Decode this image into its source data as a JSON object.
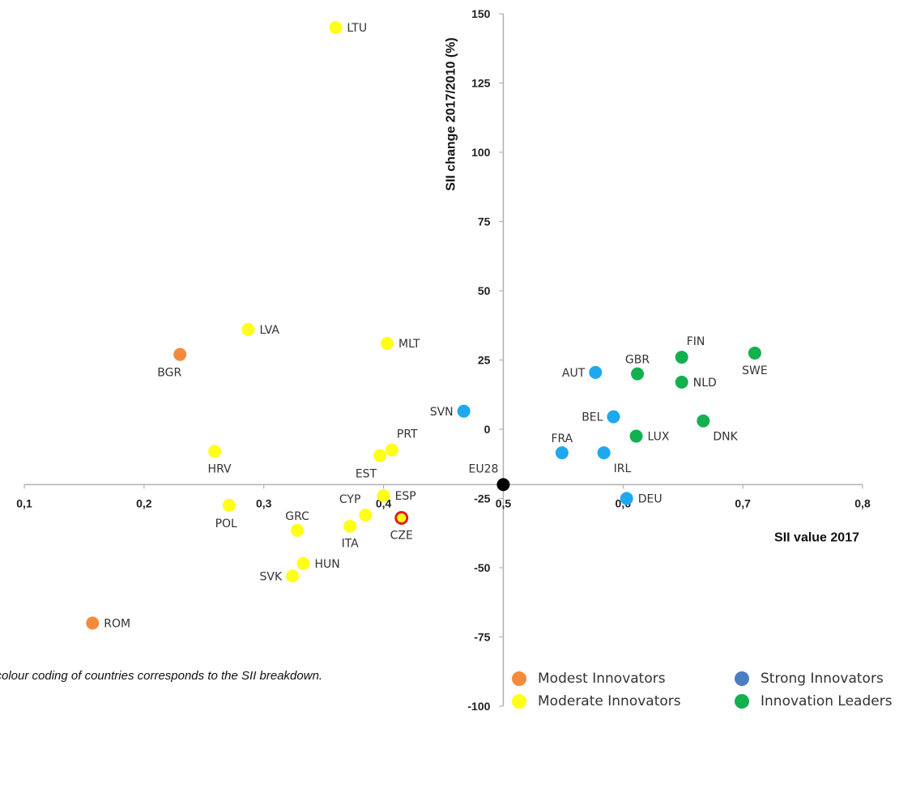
{
  "chart_data": {
    "type": "scatter",
    "xlabel": "SII value 2017",
    "ylabel": "SII change 2017/2010 (%)",
    "xlim": [
      0.1,
      0.8
    ],
    "ylim": [
      -100,
      150
    ],
    "x_ticks": [
      "0,1",
      "0,2",
      "0,3",
      "0,4",
      "0,5",
      "0,6",
      "0,7",
      "0,8"
    ],
    "y_ticks": [
      "150",
      "125",
      "100",
      "75",
      "50",
      "25",
      "0",
      "-25",
      "-50",
      "-75",
      "-100"
    ],
    "grid": false,
    "legend_position": "bottom-right",
    "categories": [
      {
        "key": "modest",
        "name": "Modest Innovators",
        "color": "#f28c3c"
      },
      {
        "key": "moderate",
        "name": "Moderate Innovators",
        "color": "#ffff1a"
      },
      {
        "key": "strong",
        "name": "Strong Innovators",
        "color": "#4a7ec2"
      },
      {
        "key": "leaders",
        "name": "Innovation Leaders",
        "color": "#13b050"
      }
    ],
    "points": [
      {
        "label": "LTU",
        "x": 0.36,
        "y": 145,
        "cat": "moderate",
        "color": "#ffff1a",
        "lpos": "right"
      },
      {
        "label": "LVA",
        "x": 0.287,
        "y": 36,
        "cat": "moderate",
        "color": "#ffff1a",
        "lpos": "right"
      },
      {
        "label": "MLT",
        "x": 0.403,
        "y": 31,
        "cat": "moderate",
        "color": "#ffff1a",
        "lpos": "right"
      },
      {
        "label": "BGR",
        "x": 0.23,
        "y": 27,
        "cat": "modest",
        "color": "#f28c3c",
        "lpos": "below-left"
      },
      {
        "label": "HRV",
        "x": 0.259,
        "y": -8,
        "cat": "moderate",
        "color": "#ffff1a",
        "lpos": "below"
      },
      {
        "label": "PRT",
        "x": 0.407,
        "y": -7.5,
        "cat": "moderate",
        "color": "#ffff1a",
        "lpos": "above-right"
      },
      {
        "label": "EST",
        "x": 0.397,
        "y": -9.5,
        "cat": "moderate",
        "color": "#ffff1a",
        "lpos": "below-left"
      },
      {
        "label": "POL",
        "x": 0.271,
        "y": -27.5,
        "cat": "moderate",
        "color": "#ffff1a",
        "lpos": "below-left"
      },
      {
        "label": "ESP",
        "x": 0.4,
        "y": -24,
        "cat": "moderate",
        "color": "#ffff1a",
        "lpos": "right"
      },
      {
        "label": "CYP",
        "x": 0.385,
        "y": -31,
        "cat": "moderate",
        "color": "#ffff1a",
        "lpos": "above-left"
      },
      {
        "label": "CZE",
        "x": 0.415,
        "y": -32,
        "cat": "moderate",
        "color": "#ffff1a",
        "highlight": true,
        "lpos": "below"
      },
      {
        "label": "GRC",
        "x": 0.328,
        "y": -36.5,
        "cat": "moderate",
        "color": "#ffff1a",
        "lpos": "above"
      },
      {
        "label": "ITA",
        "x": 0.372,
        "y": -35,
        "cat": "moderate",
        "color": "#ffff1a",
        "lpos": "below"
      },
      {
        "label": "HUN",
        "x": 0.333,
        "y": -48.5,
        "cat": "moderate",
        "color": "#ffff1a",
        "lpos": "right"
      },
      {
        "label": "SVK",
        "x": 0.324,
        "y": -53,
        "cat": "moderate",
        "color": "#ffff1a",
        "lpos": "left"
      },
      {
        "label": "ROM",
        "x": 0.157,
        "y": -70,
        "cat": "modest",
        "color": "#f28c3c",
        "lpos": "right"
      },
      {
        "label": "SVN",
        "x": 0.467,
        "y": 6.5,
        "cat": "strong",
        "color": "#1ea8ef",
        "lpos": "left"
      },
      {
        "label": "AUT",
        "x": 0.577,
        "y": 20.5,
        "cat": "strong",
        "color": "#1ea8ef",
        "lpos": "left"
      },
      {
        "label": "BEL",
        "x": 0.592,
        "y": 4.5,
        "cat": "strong",
        "color": "#1ea8ef",
        "lpos": "left"
      },
      {
        "label": "FRA",
        "x": 0.549,
        "y": -8.5,
        "cat": "strong",
        "color": "#1ea8ef",
        "lpos": "above"
      },
      {
        "label": "IRL",
        "x": 0.584,
        "y": -8.5,
        "cat": "strong",
        "color": "#1ea8ef",
        "lpos": "below-right"
      },
      {
        "label": "DEU",
        "x": 0.603,
        "y": -25,
        "cat": "strong",
        "color": "#1ea8ef",
        "lpos": "right"
      },
      {
        "label": "GBR",
        "x": 0.612,
        "y": 20,
        "cat": "leaders",
        "color": "#13b050",
        "lpos": "above"
      },
      {
        "label": "FIN",
        "x": 0.649,
        "y": 26,
        "cat": "leaders",
        "color": "#13b050",
        "lpos": "above-right"
      },
      {
        "label": "NLD",
        "x": 0.649,
        "y": 17,
        "cat": "leaders",
        "color": "#13b050",
        "lpos": "right"
      },
      {
        "label": "SWE",
        "x": 0.71,
        "y": 27.5,
        "cat": "leaders",
        "color": "#13b050",
        "lpos": "below"
      },
      {
        "label": "LUX",
        "x": 0.611,
        "y": -2.5,
        "cat": "leaders",
        "color": "#13b050",
        "lpos": "right"
      },
      {
        "label": "DNK",
        "x": 0.667,
        "y": 3,
        "cat": "leaders",
        "color": "#13b050",
        "lpos": "below-right"
      },
      {
        "label": "EU28",
        "x": 0.5,
        "y": -20,
        "cat": "eu",
        "color": "#000000",
        "lpos": "above-left"
      }
    ]
  },
  "note": "e colour coding of countries corresponds to the SII breakdown.",
  "legend": [
    {
      "label": "Modest Innovators",
      "color": "#f28c3c"
    },
    {
      "label": "Moderate Innovators",
      "color": "#ffff1a"
    },
    {
      "label": "Strong Innovators",
      "color": "#4a7ec2"
    },
    {
      "label": "Innovation Leaders",
      "color": "#13b050"
    }
  ]
}
